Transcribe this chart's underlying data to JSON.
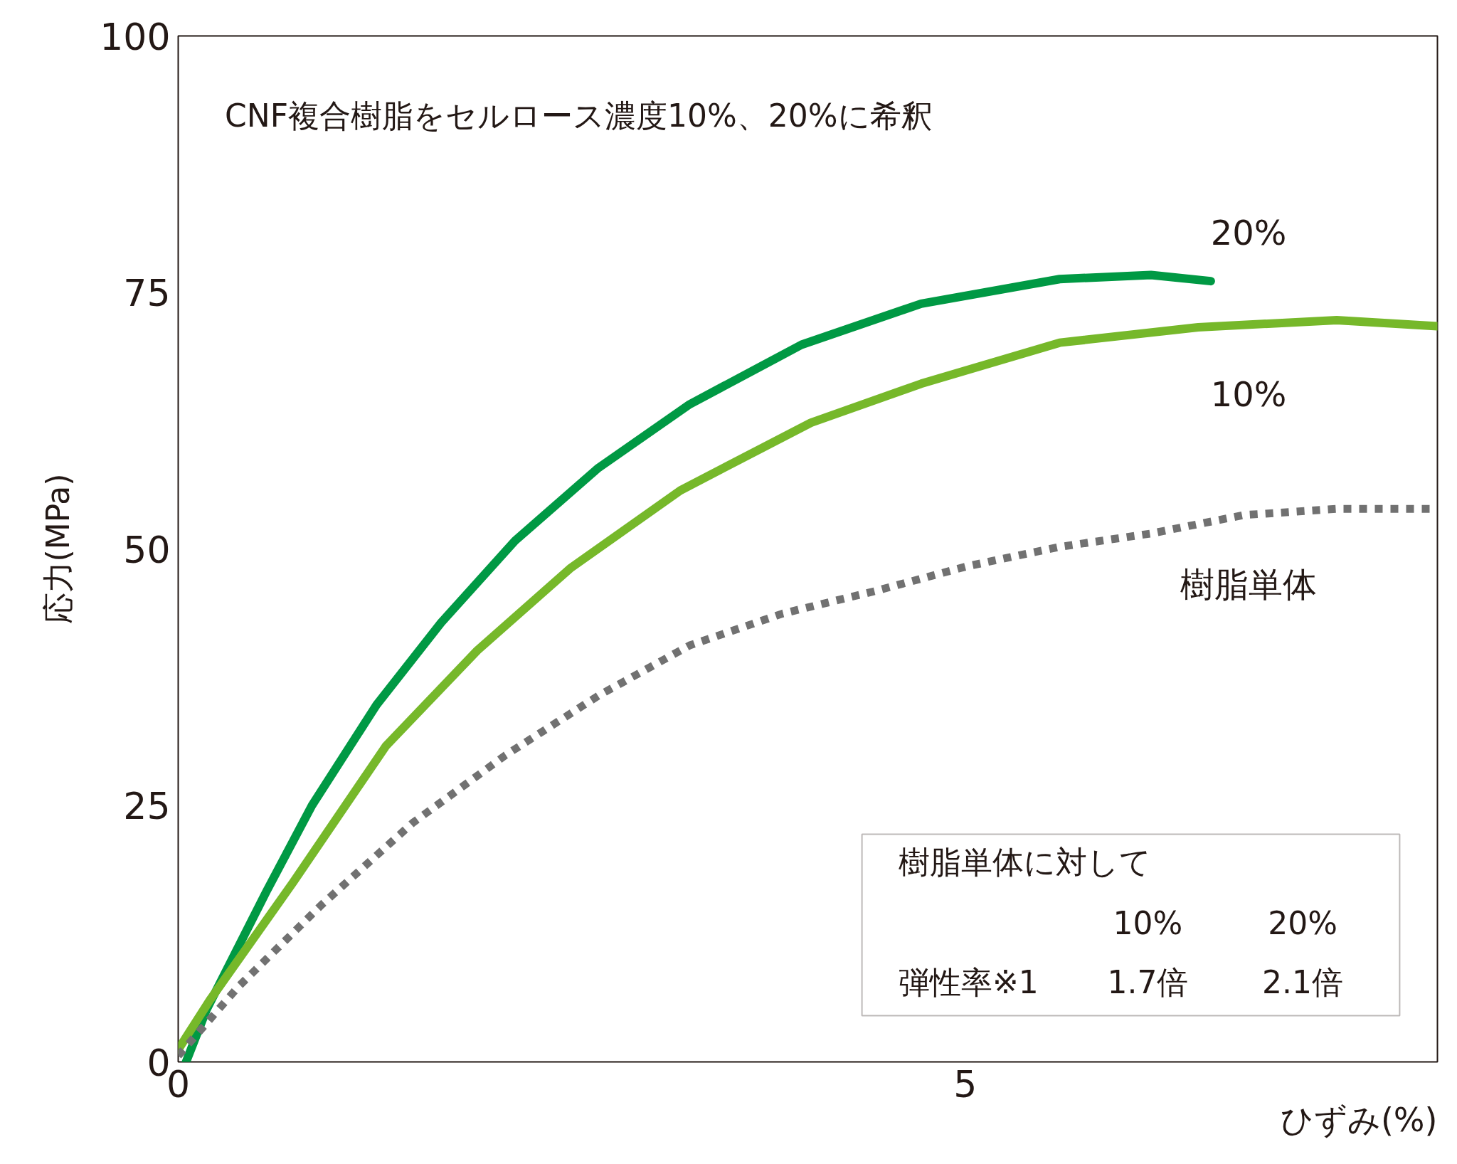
{
  "chart_data": {
    "type": "line",
    "title": "CNF複合樹脂をセルロース濃度10%、20%に希釈",
    "xlabel": "ひずみ(%)",
    "ylabel": "応力(MPa)",
    "xlim": [
      0,
      8
    ],
    "ylim": [
      0,
      100
    ],
    "xticks": [
      0,
      5
    ],
    "yticks": [
      0,
      25,
      50,
      75,
      100
    ],
    "grid": false,
    "series": [
      {
        "name": "20%",
        "color": "#009944",
        "line_style": "solid",
        "x": [
          0.05,
          0.18,
          0.56,
          0.85,
          1.26,
          1.67,
          2.14,
          2.67,
          3.25,
          3.96,
          4.72,
          5.6,
          6.18,
          6.56
        ],
        "values": [
          0,
          5.1,
          16.6,
          25,
          34.8,
          42.8,
          50.8,
          57.9,
          64.1,
          69.9,
          73.9,
          76.3,
          76.7,
          76.1
        ]
      },
      {
        "name": "10%",
        "color": "#76b82a",
        "line_style": "solid",
        "x": [
          0,
          0.2,
          0.73,
          1.32,
          1.9,
          2.49,
          3.19,
          4.02,
          4.72,
          5.6,
          6.48,
          7.36,
          8.0
        ],
        "values": [
          1.2,
          6,
          17.5,
          30.8,
          40.1,
          48.1,
          55.7,
          62.3,
          66.1,
          70.1,
          71.6,
          72.3,
          71.7
        ]
      },
      {
        "name": "樹脂単体",
        "color": "#717171",
        "line_style": "dotted",
        "x": [
          0,
          0.38,
          0.91,
          1.49,
          2.08,
          2.67,
          3.25,
          3.84,
          4.43,
          5.01,
          5.6,
          6.18,
          6.77,
          7.36,
          8.0
        ],
        "values": [
          0.6,
          7.3,
          15.3,
          23.3,
          29.9,
          35.7,
          40.6,
          43.7,
          45.9,
          48.3,
          50.2,
          51.5,
          53.3,
          53.9,
          53.9
        ]
      }
    ],
    "annotations": [
      "樹脂単体に対して",
      "10%",
      "20%",
      "弾性率※1",
      "1.7倍",
      "2.1倍"
    ]
  }
}
